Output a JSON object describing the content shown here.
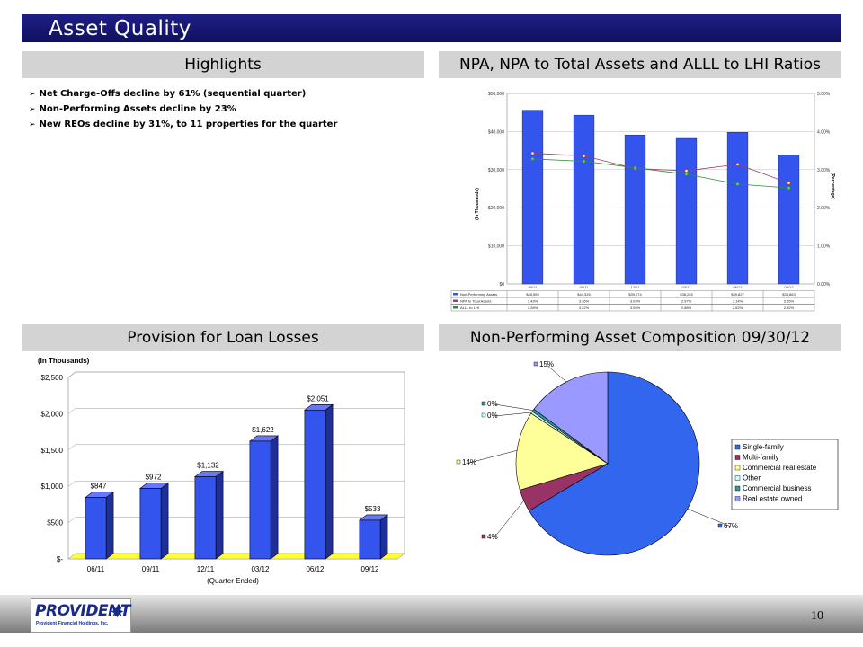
{
  "slide_title": "Asset Quality",
  "sections": {
    "highlights": "Highlights",
    "npa_ratios": "NPA, NPA to Total Assets and ALLL to LHI Ratios",
    "provision": "Provision for Loan Losses",
    "composition": "Non-Performing Asset Composition 09/30/12"
  },
  "highlights": [
    "Net Charge-Offs decline by 61% (sequential quarter)",
    "Non-Performing Assets decline by 23%",
    "New REOs decline by 31%, to 11 properties for the quarter"
  ],
  "page_number": "10",
  "logo": {
    "word": "PROVIDENT",
    "subtitle": "Provident Financial Holdings, Inc.",
    "color": "#1a2a8a"
  },
  "chart_data": [
    {
      "type": "bar",
      "title": "NPA, NPA to Total Assets and ALLL to LHI Ratios",
      "ylabel": "(In Thousands)",
      "y2label": "(Percentage)",
      "categories": [
        "06/11",
        "09/11",
        "12/11",
        "03/12",
        "06/12",
        "09/12"
      ],
      "ylim": [
        0,
        50000
      ],
      "y_ticks": [
        "$0",
        "$10,000",
        "$20,000",
        "$30,000",
        "$40,000",
        "$50,000"
      ],
      "y2lim": [
        0,
        5
      ],
      "y2_ticks": [
        "0.00%",
        "1.00%",
        "2.00%",
        "3.00%",
        "4.00%",
        "5.00%"
      ],
      "series": [
        {
          "name": "Non-Performing Assets",
          "kind": "bar",
          "color": "#3355ee",
          "values": [
            45600,
            44300,
            39100,
            38200,
            39800,
            33900
          ],
          "labels": [
            "$45,559",
            "$44,326",
            "$39,074",
            "$38,225",
            "$39,827",
            "$33,863"
          ]
        },
        {
          "name": "NPA to Total Assets",
          "kind": "line",
          "color": "#a33b6b",
          "values": [
            3.43,
            3.36,
            3.03,
            2.97,
            3.14,
            2.65
          ],
          "labels": [
            "3.43%",
            "3.36%",
            "3.03%",
            "2.97%",
            "3.14%",
            "2.65%"
          ]
        },
        {
          "name": "ALLL to LHI",
          "kind": "line",
          "color": "#2e8b3a",
          "values": [
            3.28,
            3.22,
            3.05,
            2.88,
            2.62,
            2.52
          ],
          "labels": [
            "3.28%",
            "3.22%",
            "3.05%",
            "2.88%",
            "2.62%",
            "2.52%"
          ]
        }
      ],
      "grid": true,
      "legend": "data-table-below"
    },
    {
      "type": "bar",
      "title": "Provision for Loan Losses",
      "ylabel": "(In Thousands)",
      "xlabel": "(Quarter Ended)",
      "categories": [
        "06/11",
        "09/11",
        "12/11",
        "03/12",
        "06/12",
        "09/12"
      ],
      "values": [
        847,
        972,
        1132,
        1622,
        2051,
        533
      ],
      "labels": [
        "$847",
        "$972",
        "$1,132",
        "$1,622",
        "$2,051",
        "$533"
      ],
      "ylim": [
        0,
        2500
      ],
      "y_ticks": [
        "$-",
        "$500",
        "$1,000",
        "$1,500",
        "$2,000",
        "$2,500"
      ],
      "bar_color": "#3355ee",
      "floor_color": "#ffff33",
      "grid": true
    },
    {
      "type": "pie",
      "title": "Non-Performing Asset Composition 09/30/12",
      "slices": [
        {
          "name": "Single-family",
          "value": 67,
          "label": "67%",
          "color": "#3366ee"
        },
        {
          "name": "Multi-family",
          "value": 4,
          "label": "4%",
          "color": "#993366"
        },
        {
          "name": "Commercial real estate",
          "value": 14,
          "label": "14%",
          "color": "#ffff99"
        },
        {
          "name": "Other",
          "value": 0.4,
          "label": "0%",
          "color": "#ccffff"
        },
        {
          "name": "Commercial business",
          "value": 0.5,
          "label": "0%",
          "color": "#339999"
        },
        {
          "name": "Real estate owned",
          "value": 15,
          "label": "15%",
          "color": "#9999ff"
        }
      ],
      "legend": "right"
    }
  ]
}
